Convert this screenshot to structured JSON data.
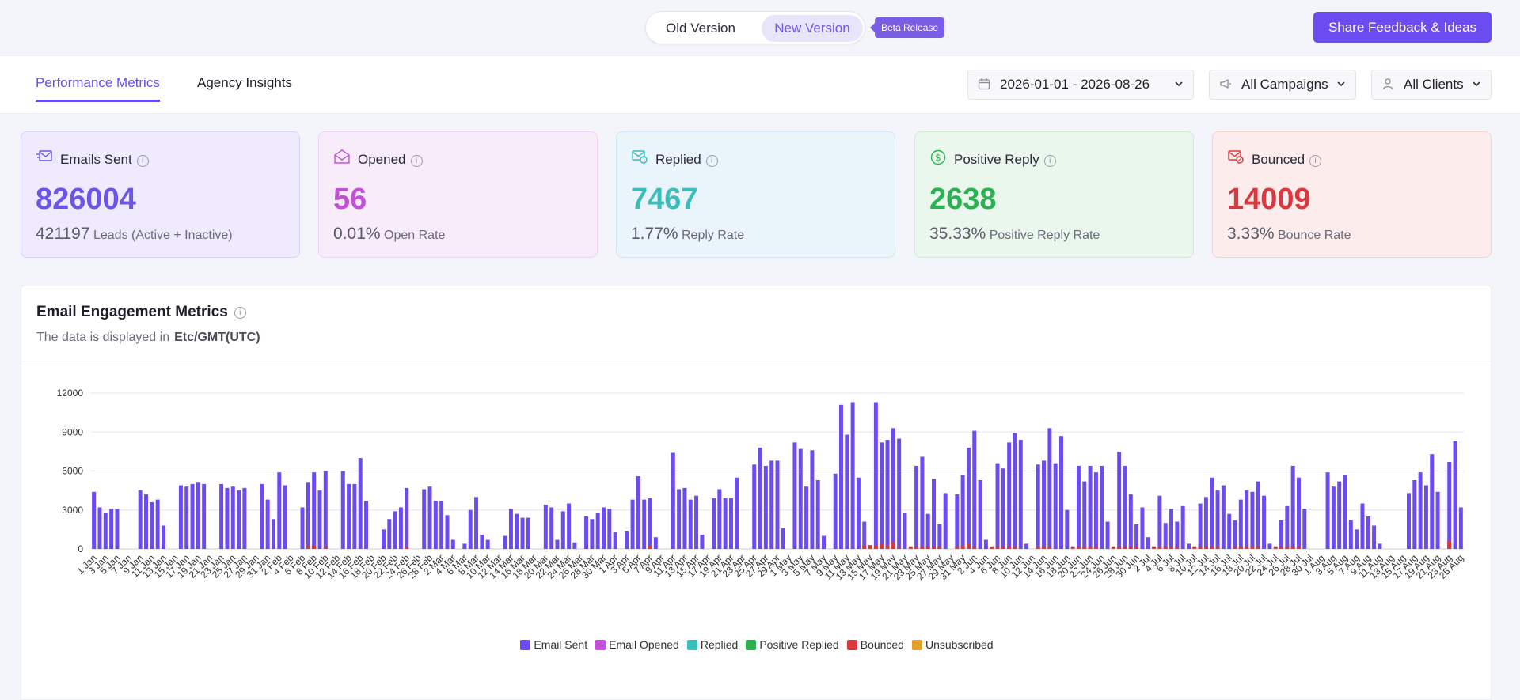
{
  "header": {
    "old_version_label": "Old Version",
    "new_version_label": "New Version",
    "beta_label": "Beta Release",
    "feedback_label": "Share Feedback & Ideas"
  },
  "tabs": [
    {
      "label": "Performance Metrics",
      "active": true
    },
    {
      "label": "Agency Insights",
      "active": false
    }
  ],
  "filters": {
    "date_range": "2026-01-01 - 2026-08-26",
    "campaigns": "All Campaigns",
    "clients": "All Clients"
  },
  "cards": [
    {
      "title": "Emails Sent",
      "value": "826004",
      "sub_value": "421197",
      "sub_label": "Leads (Active + Inactive)",
      "icon": "mail-send-icon",
      "color": "#6a55e8"
    },
    {
      "title": "Opened",
      "value": "56",
      "sub_value": "0.01%",
      "sub_label": "Open Rate",
      "icon": "mail-open-icon",
      "color": "#c44fd8"
    },
    {
      "title": "Replied",
      "value": "7467",
      "sub_value": "1.77%",
      "sub_label": "Reply Rate",
      "icon": "mail-reply-icon",
      "color": "#3bbdb9"
    },
    {
      "title": "Positive Reply",
      "value": "2638",
      "sub_value": "35.33%",
      "sub_label": "Positive Reply Rate",
      "icon": "dollar-circle-icon",
      "color": "#2bb052"
    },
    {
      "title": "Bounced",
      "value": "14009",
      "sub_value": "3.33%",
      "sub_label": "Bounce Rate",
      "icon": "mail-bounce-icon",
      "color": "#d9393e"
    }
  ],
  "panel": {
    "title": "Email Engagement Metrics",
    "subtitle": "The data is displayed in",
    "timezone": "Etc/GMT(UTC)"
  },
  "chart_data": {
    "type": "bar",
    "ylim": [
      0,
      12000
    ],
    "yticks": [
      0,
      3000,
      6000,
      9000,
      12000
    ],
    "grid": true,
    "legend_position": "bottom",
    "start_date": "2026-01-01",
    "x_tick_labels": [
      "1 Jan",
      "3 Jan",
      "5 Jan",
      "7 Jan",
      "9 Jan",
      "11 Jan",
      "13 Jan",
      "15 Jan",
      "17 Jan",
      "19 Jan",
      "21 Jan",
      "23 Jan",
      "25 Jan",
      "27 Jan",
      "29 Jan",
      "31 Jan",
      "2 Feb",
      "4 Feb",
      "6 Feb",
      "8 Feb",
      "10 Feb",
      "12 Feb",
      "14 Feb",
      "16 Feb",
      "18 Feb",
      "20 Feb",
      "22 Feb",
      "24 Feb",
      "26 Feb",
      "28 Feb",
      "2 Mar",
      "4 Mar",
      "6 Mar",
      "8 Mar",
      "10 Mar",
      "12 Mar",
      "14 Mar",
      "16 Mar",
      "18 Mar",
      "20 Mar",
      "22 Mar",
      "24 Mar",
      "26 Mar",
      "28 Mar",
      "30 Mar",
      "1 Apr",
      "3 Apr",
      "5 Apr",
      "7 Apr",
      "9 Apr",
      "11 Apr",
      "13 Apr",
      "15 Apr",
      "17 Apr",
      "19 Apr",
      "21 Apr",
      "23 Apr",
      "25 Apr",
      "27 Apr",
      "29 Apr",
      "1 May",
      "3 May",
      "5 May",
      "7 May",
      "9 May",
      "11 May",
      "13 May",
      "15 May",
      "17 May",
      "19 May",
      "21 May",
      "23 May",
      "25 May",
      "27 May",
      "29 May",
      "31 May",
      "2 Jun",
      "4 Jun",
      "6 Jun",
      "8 Jun",
      "10 Jun",
      "12 Jun",
      "14 Jun",
      "16 Jun",
      "18 Jun",
      "20 Jun",
      "22 Jun",
      "24 Jun",
      "26 Jun",
      "28 Jun",
      "30 Jun",
      "2 Jul",
      "4 Jul",
      "6 Jul",
      "8 Jul",
      "10 Jul",
      "12 Jul",
      "14 Jul",
      "16 Jul",
      "18 Jul",
      "20 Jul",
      "22 Jul",
      "24 Jul",
      "26 Jul",
      "28 Jul",
      "30 Jul",
      "1 Aug",
      "3 Aug",
      "5 Aug",
      "7 Aug",
      "9 Aug",
      "11 Aug",
      "13 Aug",
      "15 Aug",
      "17 Aug",
      "19 Aug",
      "21 Aug",
      "23 Aug",
      "25 Aug"
    ],
    "series": [
      {
        "name": "Email Sent",
        "color": "#6c4cf0",
        "values": [
          4400,
          3200,
          2800,
          3100,
          3100,
          0,
          0,
          0,
          4500,
          4200,
          3600,
          3800,
          1800,
          0,
          0,
          4900,
          4800,
          5000,
          5100,
          5000,
          0,
          0,
          5000,
          4700,
          4800,
          4500,
          4700,
          0,
          0,
          5000,
          3800,
          2300,
          5900,
          4900,
          0,
          0,
          3200,
          5100,
          5900,
          4500,
          6000,
          0,
          0,
          6000,
          5000,
          5000,
          7000,
          3700,
          0,
          0,
          1500,
          2300,
          2900,
          3200,
          4700,
          0,
          0,
          4600,
          4800,
          3700,
          3700,
          2600,
          700,
          0,
          400,
          3000,
          4000,
          1100,
          700,
          0,
          0,
          1000,
          3100,
          2700,
          2400,
          2400,
          0,
          0,
          3400,
          3200,
          700,
          2900,
          3500,
          500,
          0,
          2500,
          2300,
          2800,
          3200,
          3100,
          1300,
          0,
          1400,
          3800,
          5600,
          3800,
          3900,
          900,
          0,
          0,
          7400,
          4600,
          4700,
          3800,
          4100,
          1100,
          0,
          3900,
          4600,
          3900,
          3900,
          5500,
          0,
          0,
          6500,
          7800,
          6400,
          6800,
          6800,
          1600,
          0,
          8200,
          7700,
          4800,
          7600,
          5300,
          1000,
          0,
          5800,
          11100,
          8800,
          11300,
          5500,
          2100,
          0,
          11300,
          8200,
          8400,
          9300,
          8500,
          2800,
          0,
          6400,
          7100,
          2700,
          5400,
          1900,
          4300,
          0,
          4200,
          5700,
          7800,
          9100,
          5300,
          700,
          0,
          6600,
          6200,
          8200,
          8900,
          8400,
          400,
          0,
          6500,
          6800,
          9300,
          6600,
          8700,
          3000,
          0,
          6400,
          5200,
          6400,
          5900,
          6400,
          2100,
          0,
          7500,
          6400,
          4200,
          1900,
          3200,
          900,
          0,
          4100,
          2000,
          3100,
          2100,
          3300,
          400,
          0,
          3500,
          4000,
          5500,
          4500,
          4900,
          2700,
          2200,
          3800,
          4500,
          4400,
          5200,
          4100,
          400,
          0,
          2200,
          3300,
          6400,
          5500,
          3100,
          0,
          0,
          0,
          5900,
          4800,
          5200,
          5700,
          2200,
          1500,
          3500,
          2500,
          1800,
          400,
          0,
          0,
          0,
          0,
          4300,
          5300,
          5900,
          4900,
          7300,
          4400,
          0,
          6700,
          8300,
          3200
        ]
      },
      {
        "name": "Email Opened",
        "color": "#c44fd8",
        "values": []
      },
      {
        "name": "Replied",
        "color": "#3bbdb9",
        "values": []
      },
      {
        "name": "Positive Replied",
        "color": "#2bb052",
        "values": []
      },
      {
        "name": "Bounced",
        "color": "#d9393e",
        "values": [
          0,
          0,
          0,
          0,
          0,
          0,
          0,
          0,
          0,
          0,
          0,
          0,
          0,
          0,
          0,
          0,
          0,
          0,
          0,
          0,
          0,
          0,
          0,
          0,
          0,
          0,
          0,
          0,
          0,
          0,
          0,
          0,
          0,
          0,
          0,
          0,
          0,
          300,
          300,
          0,
          200,
          0,
          0,
          0,
          0,
          0,
          0,
          0,
          0,
          0,
          0,
          0,
          0,
          0,
          150,
          0,
          0,
          0,
          0,
          0,
          0,
          0,
          0,
          0,
          0,
          0,
          0,
          0,
          0,
          0,
          0,
          0,
          0,
          0,
          0,
          0,
          0,
          0,
          0,
          0,
          0,
          0,
          0,
          0,
          0,
          0,
          0,
          0,
          0,
          0,
          0,
          0,
          0,
          0,
          0,
          0,
          300,
          0,
          0,
          0,
          0,
          0,
          0,
          0,
          0,
          0,
          0,
          0,
          0,
          0,
          0,
          0,
          0,
          0,
          0,
          0,
          0,
          0,
          0,
          0,
          0,
          0,
          0,
          0,
          0,
          0,
          0,
          0,
          0,
          0,
          0,
          0,
          0,
          300,
          300,
          300,
          400,
          300,
          500,
          100,
          0,
          200,
          200,
          200,
          200,
          200,
          200,
          0,
          0,
          200,
          250,
          400,
          200,
          0,
          0,
          200,
          200,
          200,
          200,
          200,
          0,
          0,
          0,
          200,
          200,
          200,
          0,
          0,
          0,
          200,
          200,
          200,
          200,
          200,
          0,
          0,
          200,
          200,
          200,
          200,
          200,
          0,
          0,
          200,
          200,
          200,
          200,
          200,
          0,
          0,
          200,
          200,
          200,
          200,
          200,
          0,
          0,
          200,
          200,
          200,
          200,
          200,
          0,
          0,
          200,
          200,
          200,
          200,
          200,
          0,
          0,
          0,
          0,
          0,
          0,
          0,
          0,
          0,
          0,
          0,
          0,
          0,
          0,
          0,
          0,
          0,
          0,
          0,
          0,
          0,
          0,
          0,
          0,
          0,
          600,
          0,
          0,
          0,
          0,
          0,
          0,
          0,
          0,
          0,
          0,
          700,
          600,
          700,
          500,
          800,
          0,
          0,
          0,
          0,
          0,
          0,
          0,
          0,
          0,
          200,
          200,
          200,
          200,
          200,
          200,
          0,
          200,
          200,
          300
        ]
      },
      {
        "name": "Unsubscribed",
        "color": "#e0a12a",
        "values": []
      }
    ]
  }
}
